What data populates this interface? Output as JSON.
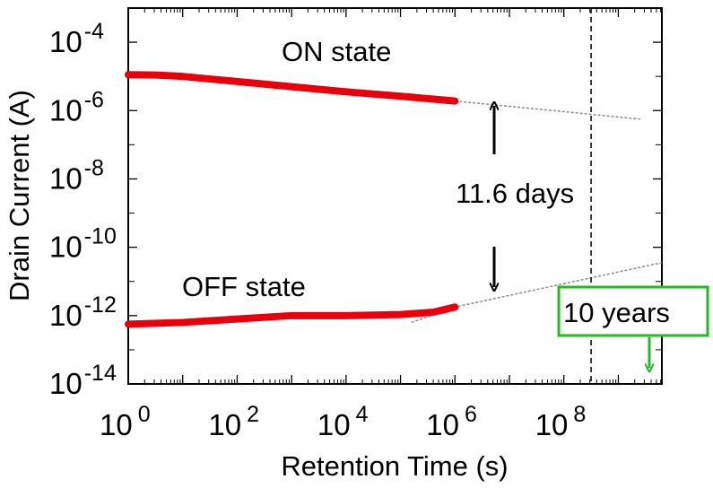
{
  "chart_data": {
    "type": "line",
    "xscale": "log",
    "yscale": "log",
    "xlabel": "Retention Time  (s)",
    "ylabel": "Drain Current (A)",
    "xlim_exp": [
      0,
      9.8
    ],
    "ylim_exp": [
      -14,
      -3
    ],
    "x_ticks": [
      {
        "base": "10",
        "exp": "0",
        "value_exp": 0
      },
      {
        "base": "10",
        "exp": "2",
        "value_exp": 2
      },
      {
        "base": "10",
        "exp": "4",
        "value_exp": 4
      },
      {
        "base": "10",
        "exp": "6",
        "value_exp": 6
      },
      {
        "base": "10",
        "exp": "8",
        "value_exp": 8
      }
    ],
    "y_ticks": [
      {
        "base": "10",
        "exp": "-4",
        "value_exp": -4
      },
      {
        "base": "10",
        "exp": "-6",
        "value_exp": -6
      },
      {
        "base": "10",
        "exp": "-8",
        "value_exp": -8
      },
      {
        "base": "10",
        "exp": "-10",
        "value_exp": -10
      },
      {
        "base": "10",
        "exp": "-12",
        "value_exp": -12
      },
      {
        "base": "10",
        "exp": "-14",
        "value_exp": -14
      }
    ],
    "series": [
      {
        "name": "ON state",
        "color": "#e8000d",
        "points_log10": [
          [
            0,
            -4.95
          ],
          [
            0.5,
            -4.96
          ],
          [
            1,
            -5.0
          ],
          [
            2,
            -5.15
          ],
          [
            3,
            -5.3
          ],
          [
            4,
            -5.45
          ],
          [
            5,
            -5.58
          ],
          [
            6,
            -5.72
          ]
        ],
        "extrapolation_log10": [
          [
            6,
            -5.72
          ],
          [
            9.4,
            -6.25
          ]
        ]
      },
      {
        "name": "OFF state",
        "color": "#e8000d",
        "points_log10": [
          [
            0,
            -12.25
          ],
          [
            1,
            -12.2
          ],
          [
            2,
            -12.1
          ],
          [
            3,
            -12.0
          ],
          [
            4,
            -12.0
          ],
          [
            5,
            -11.97
          ],
          [
            5.6,
            -11.9
          ],
          [
            6,
            -11.75
          ]
        ],
        "extrapolation_log10": [
          [
            5.2,
            -12.2
          ],
          [
            6,
            -11.75
          ],
          [
            9.8,
            -10.45
          ]
        ]
      }
    ],
    "reference_line": {
      "label": "10 years",
      "x_exp": 8.5,
      "color": "#22bb22"
    },
    "annotations": {
      "on_label": "ON state",
      "off_label": "OFF state",
      "gap_label": "11.6 days",
      "ten_years": "10 years"
    }
  }
}
